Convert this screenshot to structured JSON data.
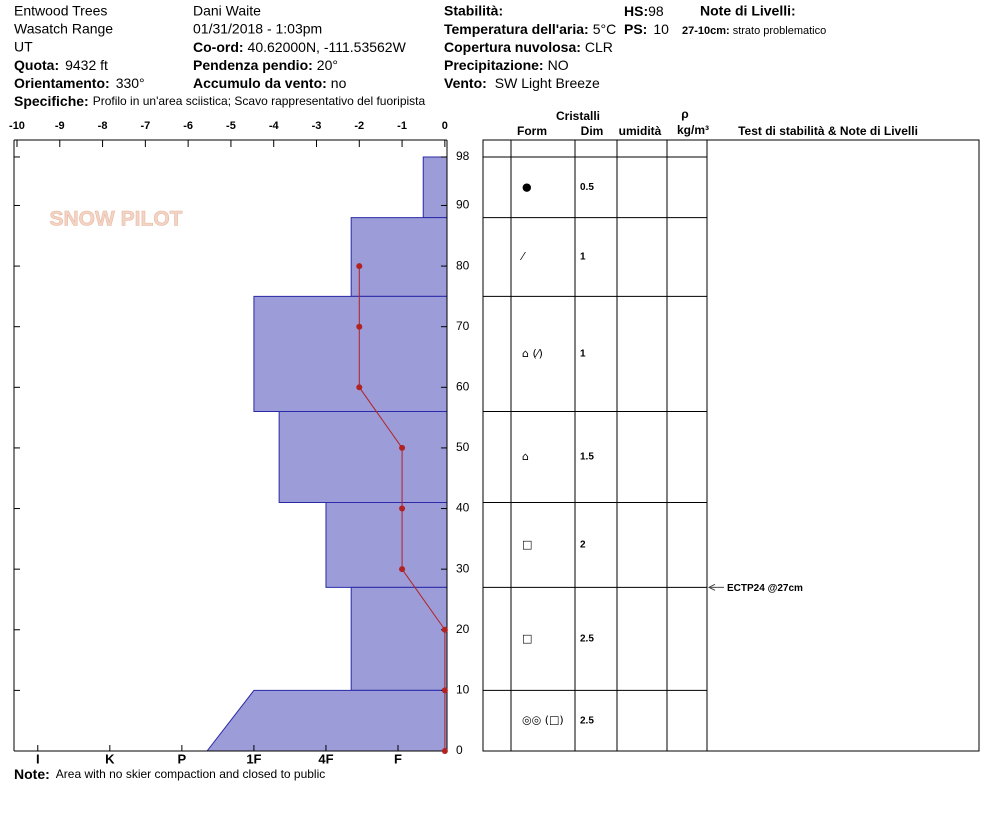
{
  "header": {
    "location": "Entwood Trees",
    "range": "Wasatch Range",
    "state": "UT",
    "elevation": {
      "label": "Quota:",
      "value": "9432 ft"
    },
    "aspect": {
      "label": "Orientamento:",
      "value": "330°"
    },
    "observer": "Dani Waite",
    "datetime": "01/31/2018 - 1:03pm",
    "coords": {
      "label": "Co-ord:",
      "value": "40.62000N, -111.53562W"
    },
    "slope": {
      "label": "Pendenza pendio:",
      "value": "20°"
    },
    "wind_loading": {
      "label": "Accumulo da vento:",
      "value": "no"
    },
    "specifics": {
      "label": "Specifiche:",
      "value": "Profilo in un'area sciistica; Scavo rappresentativo del fuoripista"
    },
    "stability": {
      "label": "Stabilità:"
    },
    "air_temp": {
      "label": "Temperatura dell'aria:",
      "value": "5°C"
    },
    "sky": {
      "label": "Copertura nuvolosa:",
      "value": "CLR"
    },
    "precip": {
      "label": "Precipitazione:",
      "value": "NO"
    },
    "wind": {
      "label": "Vento:",
      "value": "SW Light Breeze"
    },
    "hs": {
      "label": "HS:",
      "value": "98"
    },
    "ps": {
      "label": "PS:",
      "value": "10"
    },
    "layer_notes": {
      "label": "Note di Livelli:",
      "range": "27-10cm:",
      "text": "strato problematico"
    },
    "note": {
      "label": "Note:",
      "value": "Area with no skier compaction and closed to public"
    },
    "logo": "SNOW PILOT"
  },
  "chart_data": {
    "type": "snow-profile",
    "ylim": [
      0,
      100.8
    ],
    "yticks": [
      0,
      10,
      20,
      30,
      40,
      50,
      60,
      70,
      80,
      90,
      98
    ],
    "temperature_xlim": [
      -10.07,
      0.05
    ],
    "temperature_ticks": [
      -10,
      -9,
      -8,
      -7,
      -6,
      -5,
      -4,
      -3,
      -2,
      -1,
      0
    ],
    "hardness_xlim": [
      6.33,
      0.32
    ],
    "hardness_ticks": [
      {
        "value": 6,
        "label": "I"
      },
      {
        "value": 5,
        "label": "K"
      },
      {
        "value": 4,
        "label": "P"
      },
      {
        "value": 3,
        "label": "1F"
      },
      {
        "value": 2,
        "label": "4F"
      },
      {
        "value": 1,
        "label": "F"
      }
    ],
    "layer_color": "#9c9cd8",
    "layers": [
      {
        "top": 98,
        "bottom": 88,
        "hardness": 0.65,
        "form": "●",
        "size": 0.5
      },
      {
        "top": 88,
        "bottom": 75,
        "hardness": 1.65,
        "form": "⁄",
        "size": 1
      },
      {
        "top": 75,
        "bottom": 56,
        "hardness": 3,
        "form": "⌂ (⁄)",
        "size": 1
      },
      {
        "top": 56,
        "bottom": 41,
        "hardness": 2.65,
        "form": "⌂",
        "size": 1.5
      },
      {
        "top": 41,
        "bottom": 27,
        "hardness": 2,
        "form": "□",
        "size": 2
      },
      {
        "top": 27,
        "bottom": 10,
        "hardness": 1.65,
        "form": "□",
        "size": 2.5
      },
      {
        "top": 10,
        "bottom": 0,
        "hardness": 3,
        "hardness_bottom": 3.65,
        "form": "◎◎ (□)",
        "size": 2.5
      }
    ],
    "temperature": {
      "color": "#b22222",
      "depth": [
        80,
        70,
        60,
        50,
        40,
        30,
        20,
        10,
        0
      ],
      "values": [
        -2,
        -2,
        -2,
        -1,
        -1,
        -1,
        0,
        0,
        0
      ]
    },
    "tests": [
      {
        "depth": 27,
        "label": "ECTP24 @27cm"
      }
    ],
    "table_headers": {
      "crystals": "Cristalli",
      "form": "Form",
      "size": "Dim",
      "wetness": "umidità",
      "rho": "ρ",
      "density": "kg/m³",
      "tests": "Test di stabilità & Note di Livelli"
    }
  }
}
